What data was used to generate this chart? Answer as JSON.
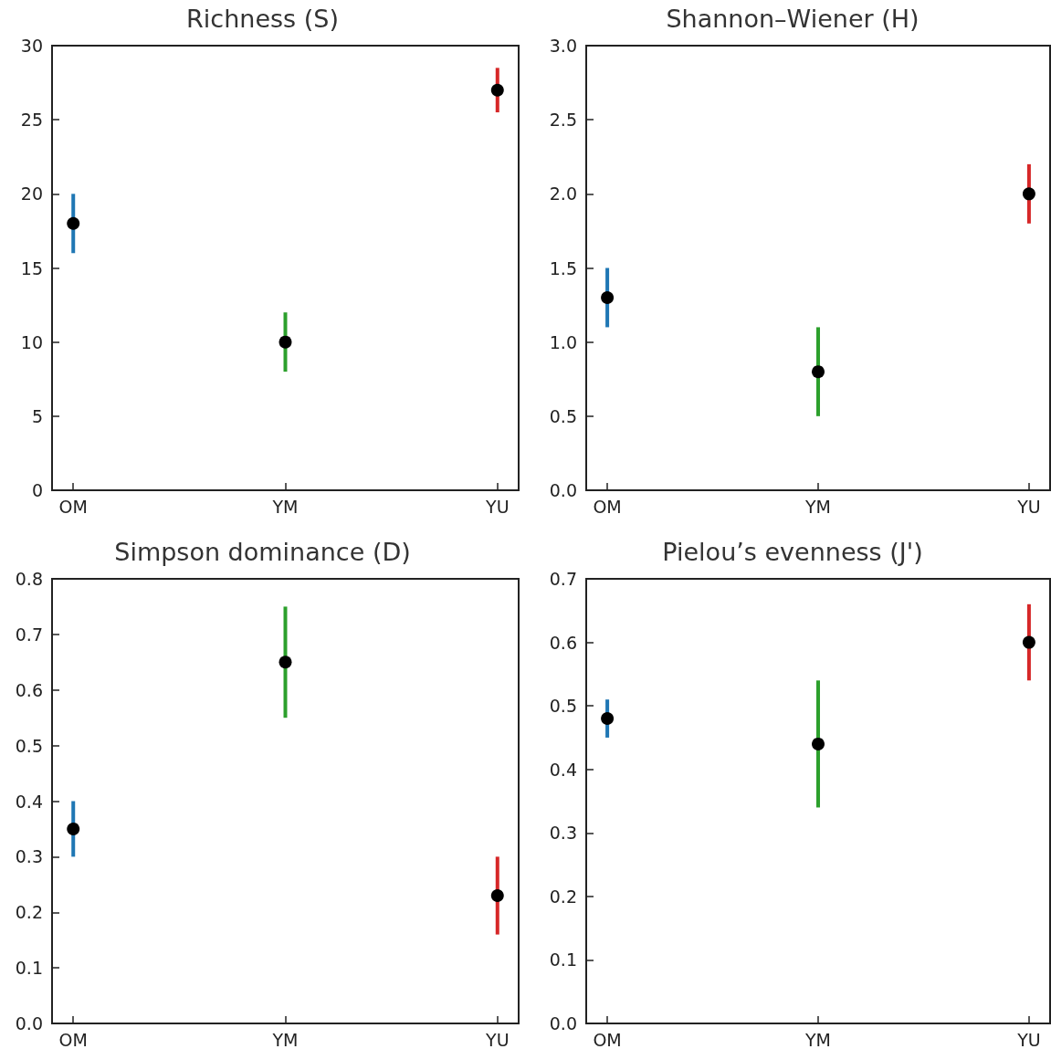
{
  "chart_data": [
    {
      "type": "scatter",
      "title": "Richness (S)",
      "categories": [
        "OM",
        "YM",
        "YU"
      ],
      "ylim": [
        0,
        30
      ],
      "yticks": [
        0,
        5,
        10,
        15,
        20,
        25,
        30
      ],
      "grid": false,
      "marker": "circle",
      "series": [
        {
          "type": "bar",
          "colors": [
            "#1f77b4",
            "#2ca02c",
            "#d62728"
          ],
          "base": [
            16,
            8,
            25.5
          ],
          "values": [
            4,
            4,
            3
          ]
        },
        {
          "color": "#000000",
          "values": [
            18,
            10,
            27
          ]
        }
      ]
    },
    {
      "type": "scatter",
      "title": "Shannon–Wiener (H)",
      "categories": [
        "OM",
        "YM",
        "YU"
      ],
      "ylim": [
        0,
        3
      ],
      "yticks": [
        {
          "value": 0,
          "label": "0.0"
        },
        0.5,
        {
          "value": 1,
          "label": "1.0"
        },
        1.5,
        {
          "value": 2,
          "label": "2.0"
        },
        2.5,
        {
          "value": 3,
          "label": "3.0"
        }
      ],
      "grid": false,
      "marker": "circle",
      "series": [
        {
          "type": "bar",
          "colors": [
            "#1f77b4",
            "#2ca02c",
            "#d62728"
          ],
          "base": [
            1.1,
            0.5,
            1.8
          ],
          "values": [
            0.4,
            0.6,
            0.4
          ]
        },
        {
          "color": "#000000",
          "values": [
            1.3,
            0.8,
            2.0
          ]
        }
      ]
    },
    {
      "type": "scatter",
      "title": "Simpson dominance (D)",
      "categories": [
        "OM",
        "YM",
        "YU"
      ],
      "ylim": [
        0,
        0.8
      ],
      "yticks": [
        {
          "value": 0,
          "label": "0.0"
        },
        0.1,
        0.2,
        0.3,
        0.4,
        0.5,
        0.6,
        0.7,
        0.8
      ],
      "grid": false,
      "marker": "circle",
      "series": [
        {
          "type": "bar",
          "colors": [
            "#1f77b4",
            "#2ca02c",
            "#d62728"
          ],
          "base": [
            0.3,
            0.55,
            0.16
          ],
          "values": [
            0.1,
            0.2,
            0.14
          ]
        },
        {
          "color": "#000000",
          "values": [
            0.35,
            0.65,
            0.23
          ]
        }
      ]
    },
    {
      "type": "scatter",
      "title": "Pielou’s evenness (J')",
      "categories": [
        "OM",
        "YM",
        "YU"
      ],
      "ylim": [
        0,
        0.7
      ],
      "yticks": [
        {
          "value": 0,
          "label": "0.0"
        },
        0.1,
        0.2,
        0.3,
        0.4,
        0.5,
        0.6,
        0.7
      ],
      "grid": false,
      "marker": "circle",
      "series": [
        {
          "type": "bar",
          "colors": [
            "#1f77b4",
            "#2ca02c",
            "#d62728"
          ],
          "base": [
            0.45,
            0.34,
            0.54
          ],
          "values": [
            0.06,
            0.2,
            0.12
          ]
        },
        {
          "color": "#000000",
          "values": [
            0.48,
            0.44,
            0.6
          ]
        }
      ]
    }
  ]
}
